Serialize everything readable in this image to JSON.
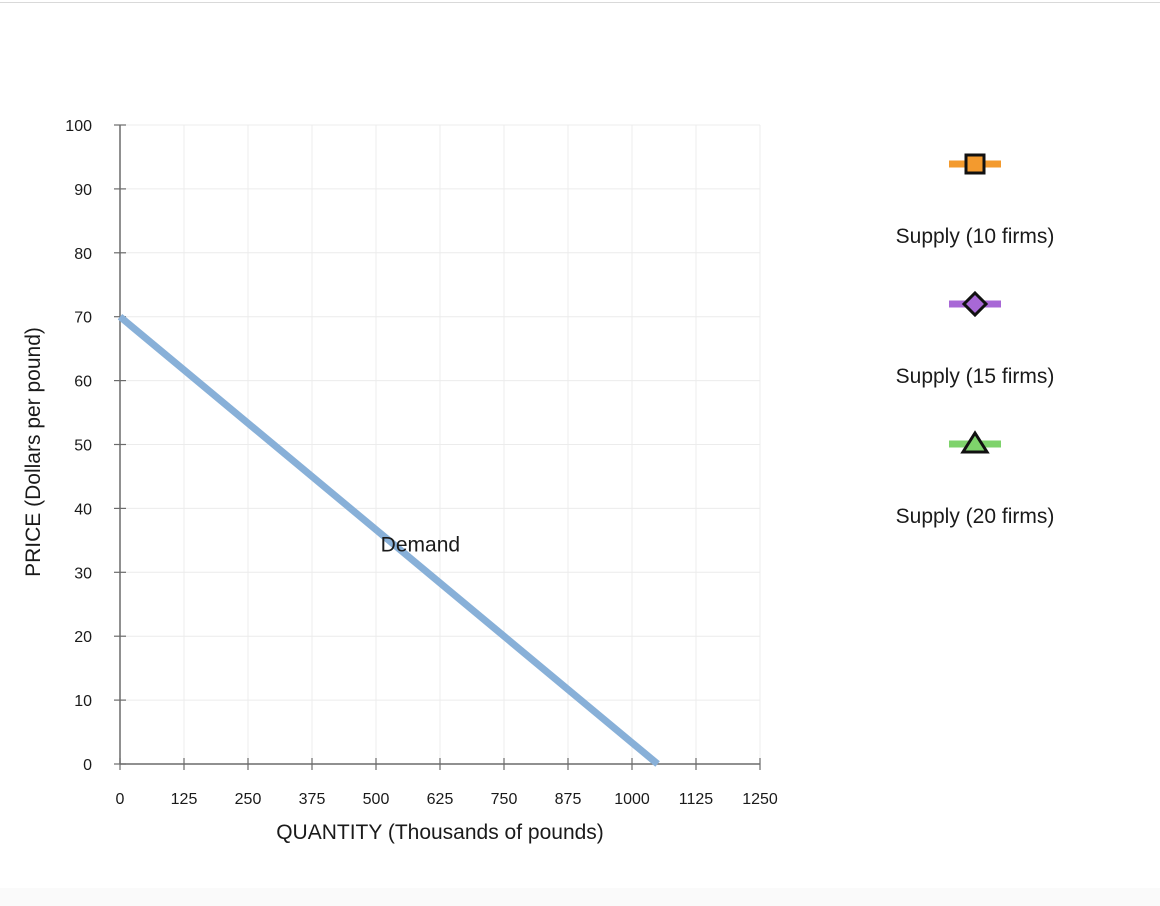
{
  "chart_data": {
    "type": "line",
    "xlabel": "QUANTITY (Thousands of pounds)",
    "ylabel": "PRICE (Dollars per pound)",
    "xlim": [
      0,
      1250
    ],
    "ylim": [
      0,
      100
    ],
    "x_ticks": [
      0,
      125,
      250,
      375,
      500,
      625,
      750,
      875,
      1000,
      1125,
      1250
    ],
    "y_ticks": [
      0,
      10,
      20,
      30,
      40,
      50,
      60,
      70,
      80,
      90,
      100
    ],
    "grid": true,
    "series": [
      {
        "name": "Demand",
        "color": "#88b0d8",
        "points": [
          [
            0,
            70
          ],
          [
            1050,
            0
          ]
        ],
        "label_at": [
          515,
          34
        ]
      }
    ],
    "legend": {
      "placement": "right",
      "entries": [
        {
          "label": "Supply (10 firms)",
          "color": "#f39a2e",
          "marker": "square"
        },
        {
          "label": "Supply (15 firms)",
          "color": "#a868d6",
          "marker": "diamond"
        },
        {
          "label": "Supply (20 firms)",
          "color": "#7ed36b",
          "marker": "triangle"
        }
      ]
    }
  }
}
